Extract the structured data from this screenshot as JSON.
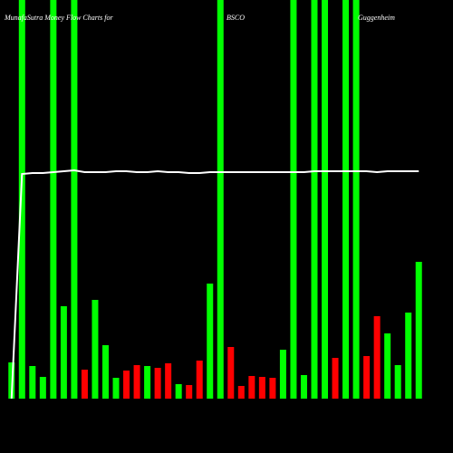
{
  "chart_data": {
    "type": "bar",
    "title_parts": [
      "MunafaSutra  Money Flow  Charts for",
      "BSCO",
      "Guggenheim"
    ],
    "categories": [
      null,
      null,
      null,
      null,
      null,
      null,
      null,
      null,
      null,
      null,
      null,
      null,
      null,
      null,
      null,
      null,
      null,
      null,
      null,
      null,
      null,
      null,
      null,
      null,
      null,
      null,
      null,
      null,
      null,
      null,
      null,
      null,
      null,
      null,
      null,
      null,
      null,
      null,
      null,
      null
    ],
    "values": [
      40,
      440,
      36,
      24,
      440,
      102,
      440,
      32,
      109,
      59,
      23,
      31,
      37,
      36,
      34,
      39,
      16,
      15,
      42,
      127,
      440,
      57,
      14,
      25,
      24,
      23,
      54,
      440,
      26,
      440,
      440,
      45,
      440,
      440,
      47,
      91,
      72,
      37,
      95,
      151
    ],
    "bar_colors": [
      "#00ff00",
      "#00ff00",
      "#00ff00",
      "#00ff00",
      "#00ff00",
      "#00ff00",
      "#00ff00",
      "#ff0000",
      "#00ff00",
      "#00ff00",
      "#00ff00",
      "#ff0000",
      "#ff0000",
      "#00ff00",
      "#ff0000",
      "#ff0000",
      "#00ff00",
      "#ff0000",
      "#ff0000",
      "#00ff00",
      "#00ff00",
      "#ff0000",
      "#ff0000",
      "#ff0000",
      "#ff0000",
      "#ff0000",
      "#00ff00",
      "#00ff00",
      "#00ff00",
      "#00ff00",
      "#00ff00",
      "#ff0000",
      "#00ff00",
      "#00ff00",
      "#ff0000",
      "#ff0000",
      "#00ff00",
      "#00ff00",
      "#00ff00",
      "#00ff00"
    ],
    "line": {
      "color": "#ffffff",
      "values": [
        0,
        248,
        249,
        249,
        250,
        251,
        252,
        250,
        250,
        250,
        251,
        251,
        250,
        250,
        251,
        250,
        250,
        249,
        249,
        250,
        250,
        250,
        250,
        250,
        250,
        250,
        250,
        250,
        250,
        251,
        251,
        251,
        251,
        251,
        251,
        250,
        251,
        251,
        251,
        251
      ]
    },
    "ylim": [
      0,
      440
    ]
  }
}
